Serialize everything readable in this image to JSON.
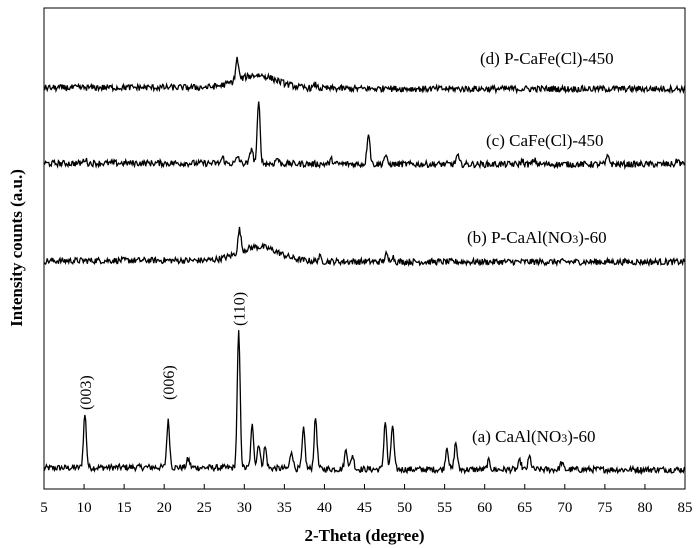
{
  "chart_data": {
    "type": "line",
    "xlabel": "2-Theta (degree)",
    "ylabel": "Intensity counts (a.u.)",
    "xlim": [
      5,
      85
    ],
    "x_ticks": [
      "5",
      "10",
      "15",
      "20",
      "25",
      "30",
      "35",
      "40",
      "45",
      "50",
      "55",
      "60",
      "65",
      "70",
      "75",
      "80",
      "85"
    ],
    "grid": false,
    "series": [
      {
        "name": "CaAl(NO3)-60",
        "label_prefix": "(a)",
        "label_main": "CaAl(NO",
        "label_sub": "3",
        "label_end": ")-60",
        "offset": 0,
        "baseline": 0.08,
        "peaks": [
          [
            10.1,
            0.75
          ],
          [
            20.5,
            0.65
          ],
          [
            23,
            0.12
          ],
          [
            29.3,
            1.9
          ],
          [
            31,
            0.6
          ],
          [
            31.8,
            0.35
          ],
          [
            32.6,
            0.3
          ],
          [
            35.9,
            0.25
          ],
          [
            37.4,
            0.55
          ],
          [
            38.9,
            0.72
          ],
          [
            42.7,
            0.28
          ],
          [
            43.5,
            0.2
          ],
          [
            47.6,
            0.68
          ],
          [
            48.5,
            0.62
          ],
          [
            55.3,
            0.32
          ],
          [
            56.4,
            0.38
          ],
          [
            60.5,
            0.12
          ],
          [
            64.4,
            0.12
          ],
          [
            65.6,
            0.18
          ],
          [
            69.6,
            0.1
          ]
        ],
        "hump": [
          0,
          0
        ]
      },
      {
        "name": "P-CaAl(NO3)-60",
        "label_prefix": "(b)",
        "label_main": "P-CaAl(NO",
        "label_sub": "3",
        "label_end": ")-60",
        "offset": 2.65,
        "baseline": 0.05,
        "peaks": [
          [
            29.4,
            0.32
          ],
          [
            47.7,
            0.1
          ],
          [
            48.5,
            0.08
          ],
          [
            39.4,
            0.06
          ]
        ],
        "hump": [
          31.8,
          0.2
        ]
      },
      {
        "name": "CaFe(Cl)-450",
        "label_prefix": "(c)",
        "label_main": "CaFe(Cl)-450",
        "label_sub": "",
        "label_end": "",
        "offset": 4.3,
        "baseline": 0.04,
        "peaks": [
          [
            10.1,
            0.06
          ],
          [
            27.3,
            0.08
          ],
          [
            29.2,
            0.1
          ],
          [
            30.9,
            0.22
          ],
          [
            31.8,
            0.85
          ],
          [
            34.1,
            0.08
          ],
          [
            40.9,
            0.06
          ],
          [
            45.5,
            0.45
          ],
          [
            47.6,
            0.12
          ],
          [
            56.6,
            0.12
          ],
          [
            64.7,
            0.05
          ],
          [
            66.2,
            0.06
          ],
          [
            75.4,
            0.12
          ],
          [
            84.1,
            0.06
          ]
        ],
        "hump": [
          0,
          0
        ]
      },
      {
        "name": "P-CaFe(Cl)-450",
        "label_prefix": "(d)",
        "label_main": "P-CaFe(Cl)-450",
        "label_sub": "",
        "label_end": "",
        "offset": 5.9,
        "baseline": 0.05,
        "peaks": [
          [
            29.1,
            0.3
          ],
          [
            38.9,
            0.05
          ],
          [
            47.8,
            0.05
          ]
        ],
        "hump": [
          31.6,
          0.18
        ]
      }
    ],
    "annotations": [
      {
        "text": "(003)",
        "x": 10.1
      },
      {
        "text": "(006)",
        "x": 20.5
      },
      {
        "text": "(110)",
        "x": 29.3
      }
    ]
  }
}
